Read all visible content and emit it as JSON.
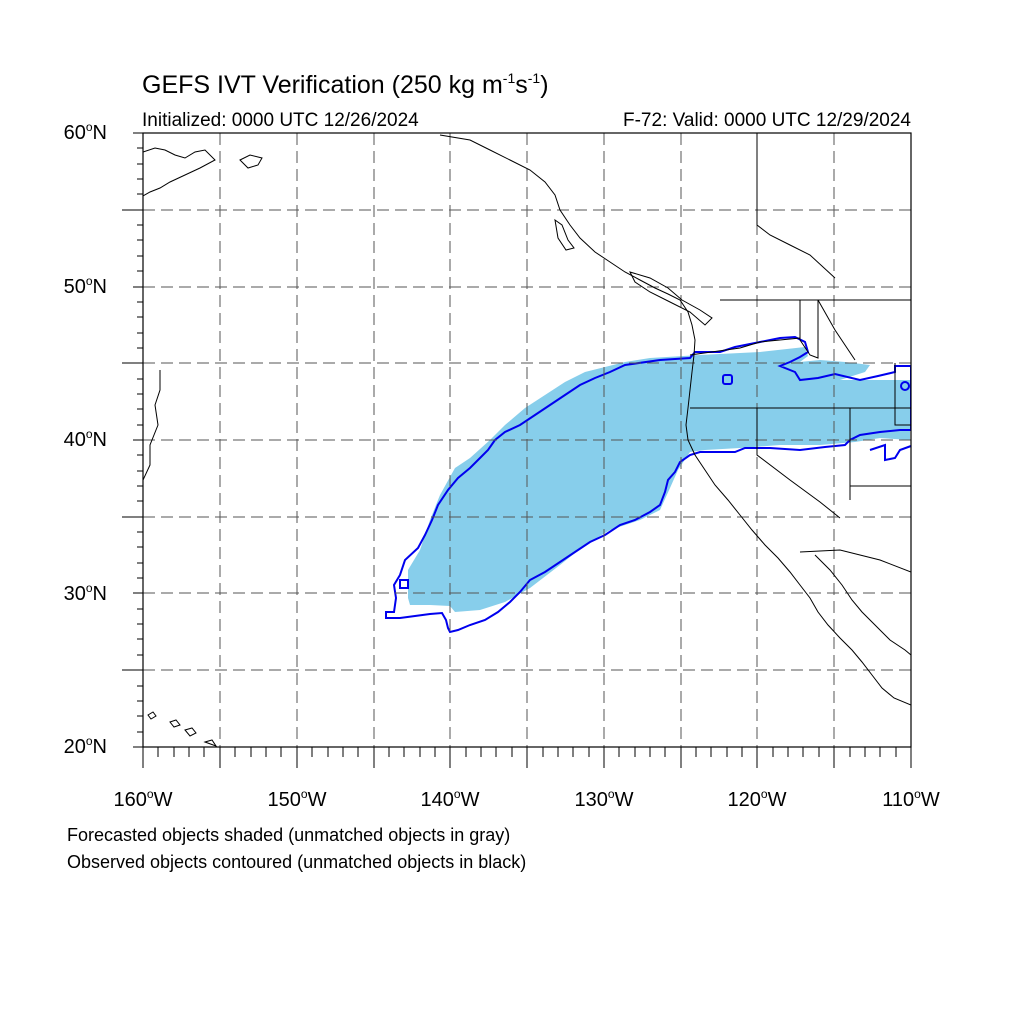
{
  "header": {
    "title_prefix": "GEFS IVT Verification (250 kg m",
    "title_exp1": "-1",
    "title_mid": "s",
    "title_exp2": "-1",
    "title_suffix": ")",
    "initialized": "Initialized: 0000 UTC 12/26/2024",
    "valid": "F-72: Valid: 0000 UTC 12/29/2024"
  },
  "axes": {
    "lat_labels": [
      {
        "text": "60",
        "suffix": "N"
      },
      {
        "text": "50",
        "suffix": "N"
      },
      {
        "text": "40",
        "suffix": "N"
      },
      {
        "text": "30",
        "suffix": "N"
      },
      {
        "text": "20",
        "suffix": "N"
      }
    ],
    "lon_labels": [
      {
        "text": "160",
        "suffix": "W"
      },
      {
        "text": "150",
        "suffix": "W"
      },
      {
        "text": "140",
        "suffix": "W"
      },
      {
        "text": "130",
        "suffix": "W"
      },
      {
        "text": "120",
        "suffix": "W"
      },
      {
        "text": "110",
        "suffix": "W"
      }
    ],
    "deg_symbol": "o"
  },
  "legend": {
    "line1": "Forecasted objects shaded (unmatched objects in gray)",
    "line2": "Observed objects contoured (unmatched objects in black)"
  },
  "colors": {
    "forecast_fill": "#87ceeb",
    "observed_contour": "#0000ee",
    "coast": "#000000",
    "grid": "#555555"
  }
}
